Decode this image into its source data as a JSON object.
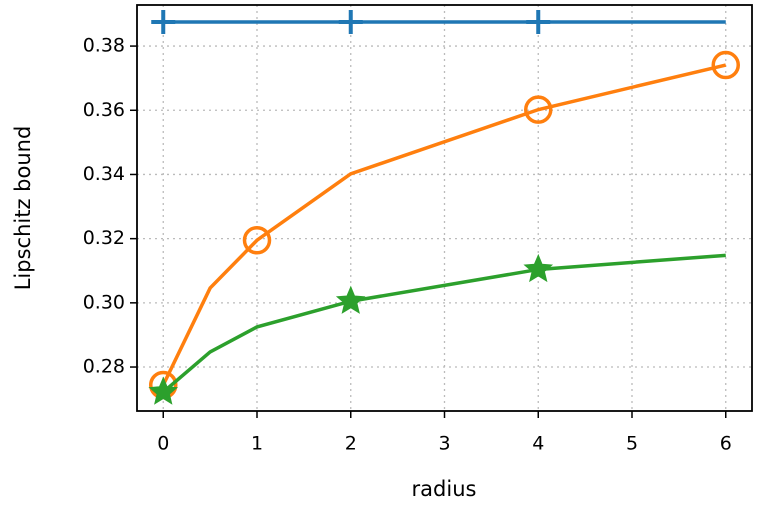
{
  "chart_data": {
    "type": "line",
    "x_label": "radius",
    "y_label": "Lipschitz bound",
    "x": [
      0,
      0.5,
      1,
      2,
      4,
      6
    ],
    "series": [
      {
        "color": "#1f77b4",
        "marker": "plus",
        "marker_indices": [
          0,
          3,
          4
        ],
        "values": [
          0.3875,
          0.3875,
          0.3875,
          0.3875,
          0.3875,
          0.3875
        ]
      },
      {
        "color": "#ff7f0e",
        "marker": "circle",
        "marker_indices": [
          0,
          2,
          4,
          5
        ],
        "values": [
          0.2744,
          0.3046,
          0.3195,
          0.3402,
          0.3602,
          0.3741
        ]
      },
      {
        "color": "#2ca02c",
        "marker": "star",
        "marker_indices": [
          0,
          3,
          4
        ],
        "values": [
          0.2722,
          0.2847,
          0.2925,
          0.3005,
          0.3104,
          0.3148
        ]
      }
    ],
    "xlim": [
      -0.28,
      6.28
    ],
    "xticks": [
      0,
      1,
      2,
      3,
      4,
      5,
      6
    ],
    "ylim": [
      0.2663,
      0.3928
    ],
    "yticks": [
      0.28,
      {
        "value": 0.3,
        "label": "0.30"
      },
      0.32,
      0.34,
      0.36,
      0.38
    ],
    "grid": true
  }
}
